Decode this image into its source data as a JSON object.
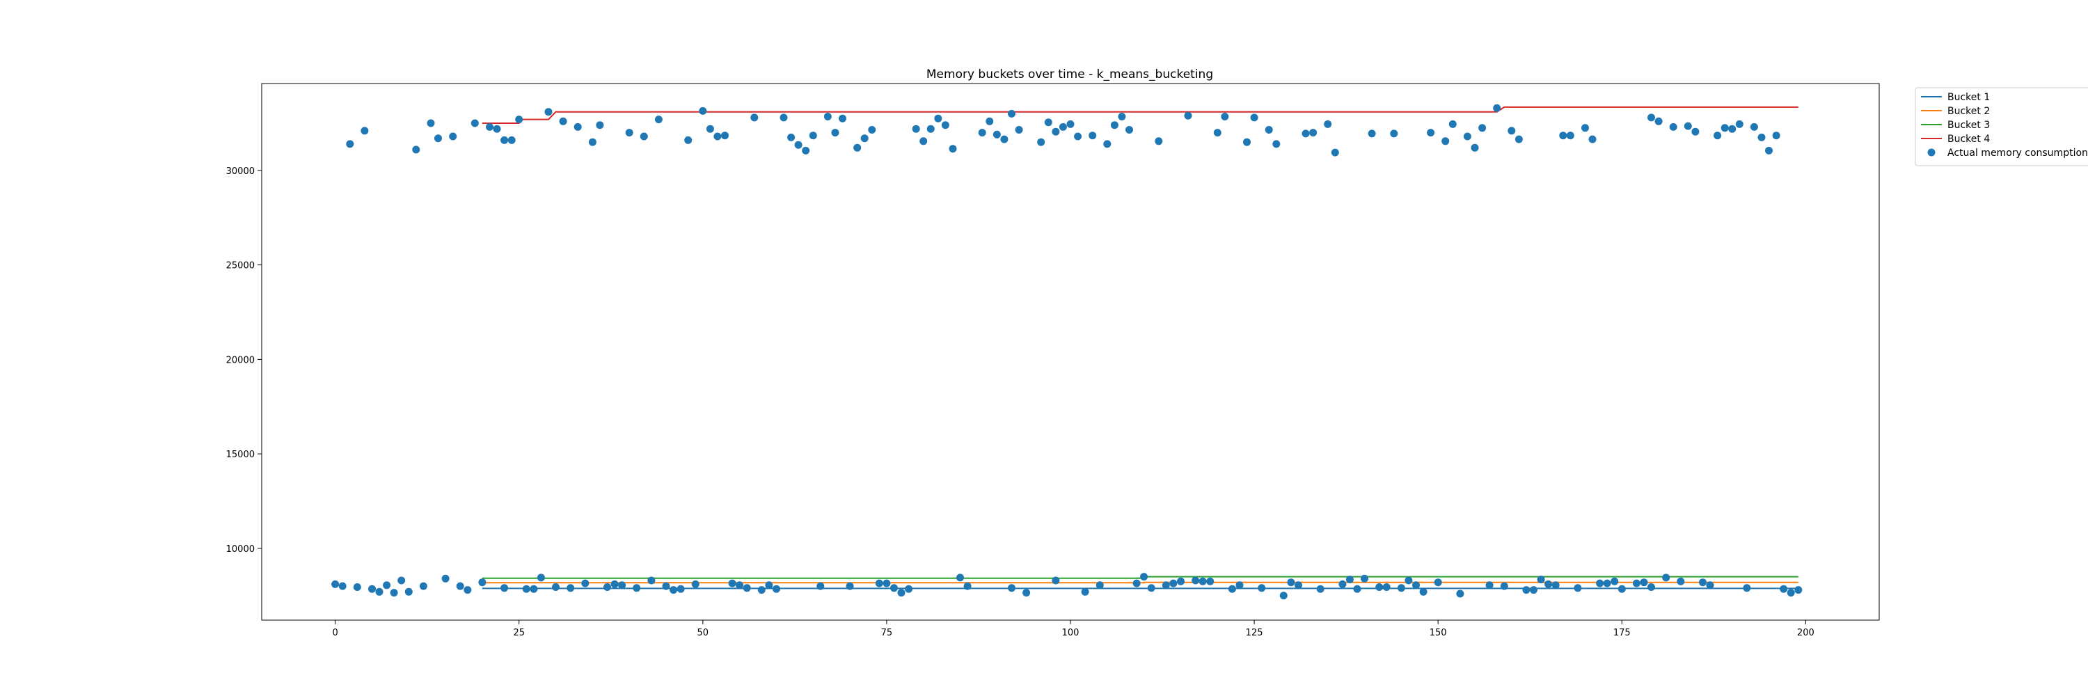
{
  "chart_data": {
    "type": "line",
    "title": "Memory buckets over time - k_means_bucketing",
    "xlabel": "",
    "ylabel": "",
    "xlim": [
      -10,
      210
    ],
    "ylim": [
      6200,
      34600
    ],
    "x_ticks": [
      0,
      25,
      50,
      75,
      100,
      125,
      150,
      175,
      200
    ],
    "y_ticks": [
      10000,
      15000,
      20000,
      25000,
      30000
    ],
    "grid": false,
    "legend_position": "outside-top-right",
    "series": [
      {
        "name": "Bucket 1",
        "color": "#1f77b4",
        "points": [
          [
            20,
            7880
          ],
          [
            199,
            7880
          ]
        ]
      },
      {
        "name": "Bucket 2",
        "color": "#ff7f0e",
        "points": [
          [
            20,
            8180
          ],
          [
            110,
            8180
          ],
          [
            110,
            8200
          ],
          [
            199,
            8200
          ]
        ]
      },
      {
        "name": "Bucket 3",
        "color": "#2ca02c",
        "points": [
          [
            20,
            8420
          ],
          [
            110,
            8420
          ],
          [
            110,
            8500
          ],
          [
            199,
            8500
          ]
        ]
      },
      {
        "name": "Bucket 4",
        "color": "#d62728",
        "points": [
          [
            20,
            32500
          ],
          [
            25,
            32500
          ],
          [
            25,
            32700
          ],
          [
            29,
            32700
          ],
          [
            30,
            33100
          ],
          [
            158,
            33100
          ],
          [
            159,
            33350
          ],
          [
            199,
            33350
          ]
        ]
      }
    ],
    "scatter": {
      "name": "Actual memory consumption",
      "color": "#1f77b4",
      "points": [
        [
          0,
          8100
        ],
        [
          1,
          8000
        ],
        [
          3,
          7950
        ],
        [
          5,
          7850
        ],
        [
          6,
          7700
        ],
        [
          7,
          8050
        ],
        [
          8,
          7650
        ],
        [
          9,
          8300
        ],
        [
          10,
          7700
        ],
        [
          12,
          8000
        ],
        [
          15,
          8400
        ],
        [
          17,
          8000
        ],
        [
          18,
          7800
        ],
        [
          20,
          8200
        ],
        [
          23,
          7900
        ],
        [
          26,
          7850
        ],
        [
          27,
          7850
        ],
        [
          28,
          8450
        ],
        [
          30,
          7950
        ],
        [
          32,
          7900
        ],
        [
          34,
          8150
        ],
        [
          37,
          7950
        ],
        [
          38,
          8100
        ],
        [
          39,
          8050
        ],
        [
          41,
          7900
        ],
        [
          43,
          8300
        ],
        [
          45,
          8000
        ],
        [
          46,
          7800
        ],
        [
          47,
          7850
        ],
        [
          49,
          8100
        ],
        [
          54,
          8150
        ],
        [
          55,
          8050
        ],
        [
          56,
          7900
        ],
        [
          58,
          7800
        ],
        [
          59,
          8050
        ],
        [
          60,
          7850
        ],
        [
          66,
          8000
        ],
        [
          70,
          8000
        ],
        [
          74,
          8150
        ],
        [
          75,
          8150
        ],
        [
          76,
          7900
        ],
        [
          77,
          7650
        ],
        [
          78,
          7850
        ],
        [
          85,
          8450
        ],
        [
          86,
          8000
        ],
        [
          92,
          7900
        ],
        [
          94,
          7650
        ],
        [
          98,
          8300
        ],
        [
          102,
          7700
        ],
        [
          104,
          8050
        ],
        [
          109,
          8150
        ],
        [
          110,
          8500
        ],
        [
          111,
          7900
        ],
        [
          113,
          8050
        ],
        [
          114,
          8150
        ],
        [
          115,
          8250
        ],
        [
          117,
          8300
        ],
        [
          118,
          8250
        ],
        [
          119,
          8250
        ],
        [
          122,
          7850
        ],
        [
          123,
          8050
        ],
        [
          126,
          7900
        ],
        [
          129,
          7500
        ],
        [
          130,
          8200
        ],
        [
          131,
          8050
        ],
        [
          134,
          7850
        ],
        [
          137,
          8100
        ],
        [
          138,
          8350
        ],
        [
          139,
          7850
        ],
        [
          140,
          8400
        ],
        [
          142,
          7950
        ],
        [
          143,
          7950
        ],
        [
          145,
          7900
        ],
        [
          146,
          8300
        ],
        [
          147,
          8050
        ],
        [
          148,
          7700
        ],
        [
          150,
          8200
        ],
        [
          153,
          7600
        ],
        [
          157,
          8050
        ],
        [
          159,
          8000
        ],
        [
          162,
          7800
        ],
        [
          163,
          7800
        ],
        [
          164,
          8350
        ],
        [
          165,
          8100
        ],
        [
          166,
          8050
        ],
        [
          169,
          7900
        ],
        [
          172,
          8150
        ],
        [
          173,
          8150
        ],
        [
          174,
          8250
        ],
        [
          175,
          7850
        ],
        [
          177,
          8150
        ],
        [
          178,
          8200
        ],
        [
          179,
          7950
        ],
        [
          181,
          8450
        ],
        [
          183,
          8250
        ],
        [
          186,
          8200
        ],
        [
          187,
          8050
        ],
        [
          192,
          7900
        ],
        [
          197,
          7850
        ],
        [
          198,
          7650
        ],
        [
          199,
          7800
        ],
        [
          2,
          31400
        ],
        [
          4,
          32100
        ],
        [
          11,
          31100
        ],
        [
          13,
          32500
        ],
        [
          14,
          31700
        ],
        [
          16,
          31800
        ],
        [
          19,
          32500
        ],
        [
          21,
          32300
        ],
        [
          22,
          32200
        ],
        [
          23,
          31600
        ],
        [
          24,
          31600
        ],
        [
          25,
          32700
        ],
        [
          29,
          33100
        ],
        [
          31,
          32600
        ],
        [
          33,
          32300
        ],
        [
          35,
          31500
        ],
        [
          36,
          32400
        ],
        [
          40,
          32000
        ],
        [
          42,
          31800
        ],
        [
          44,
          32700
        ],
        [
          48,
          31600
        ],
        [
          50,
          33150
        ],
        [
          51,
          32200
        ],
        [
          52,
          31800
        ],
        [
          53,
          31850
        ],
        [
          57,
          32800
        ],
        [
          61,
          32800
        ],
        [
          62,
          31750
        ],
        [
          63,
          31350
        ],
        [
          64,
          31050
        ],
        [
          65,
          31850
        ],
        [
          67,
          32850
        ],
        [
          68,
          32000
        ],
        [
          69,
          32750
        ],
        [
          71,
          31200
        ],
        [
          72,
          31700
        ],
        [
          73,
          32150
        ],
        [
          79,
          32200
        ],
        [
          80,
          31550
        ],
        [
          81,
          32200
        ],
        [
          82,
          32750
        ],
        [
          83,
          32400
        ],
        [
          84,
          31150
        ],
        [
          88,
          32000
        ],
        [
          89,
          32600
        ],
        [
          90,
          31900
        ],
        [
          91,
          31650
        ],
        [
          92,
          33000
        ],
        [
          93,
          32150
        ],
        [
          96,
          31500
        ],
        [
          97,
          32550
        ],
        [
          98,
          32050
        ],
        [
          99,
          32300
        ],
        [
          100,
          32450
        ],
        [
          101,
          31800
        ],
        [
          103,
          31850
        ],
        [
          105,
          31400
        ],
        [
          106,
          32400
        ],
        [
          107,
          32850
        ],
        [
          108,
          32150
        ],
        [
          112,
          31550
        ],
        [
          116,
          32900
        ],
        [
          120,
          32000
        ],
        [
          121,
          32850
        ],
        [
          124,
          31500
        ],
        [
          125,
          32800
        ],
        [
          127,
          32150
        ],
        [
          128,
          31400
        ],
        [
          132,
          31950
        ],
        [
          133,
          32000
        ],
        [
          135,
          32450
        ],
        [
          136,
          30950
        ],
        [
          141,
          31950
        ],
        [
          144,
          31950
        ],
        [
          149,
          32000
        ],
        [
          151,
          31550
        ],
        [
          152,
          32450
        ],
        [
          154,
          31800
        ],
        [
          155,
          31200
        ],
        [
          156,
          32250
        ],
        [
          158,
          33300
        ],
        [
          160,
          32100
        ],
        [
          161,
          31650
        ],
        [
          167,
          31850
        ],
        [
          168,
          31850
        ],
        [
          170,
          32250
        ],
        [
          171,
          31650
        ],
        [
          179,
          32800
        ],
        [
          180,
          32600
        ],
        [
          182,
          32300
        ],
        [
          184,
          32350
        ],
        [
          185,
          32050
        ],
        [
          188,
          31850
        ],
        [
          189,
          32250
        ],
        [
          190,
          32200
        ],
        [
          191,
          32450
        ],
        [
          193,
          32300
        ],
        [
          194,
          31750
        ],
        [
          195,
          31050
        ],
        [
          196,
          31850
        ]
      ]
    }
  }
}
